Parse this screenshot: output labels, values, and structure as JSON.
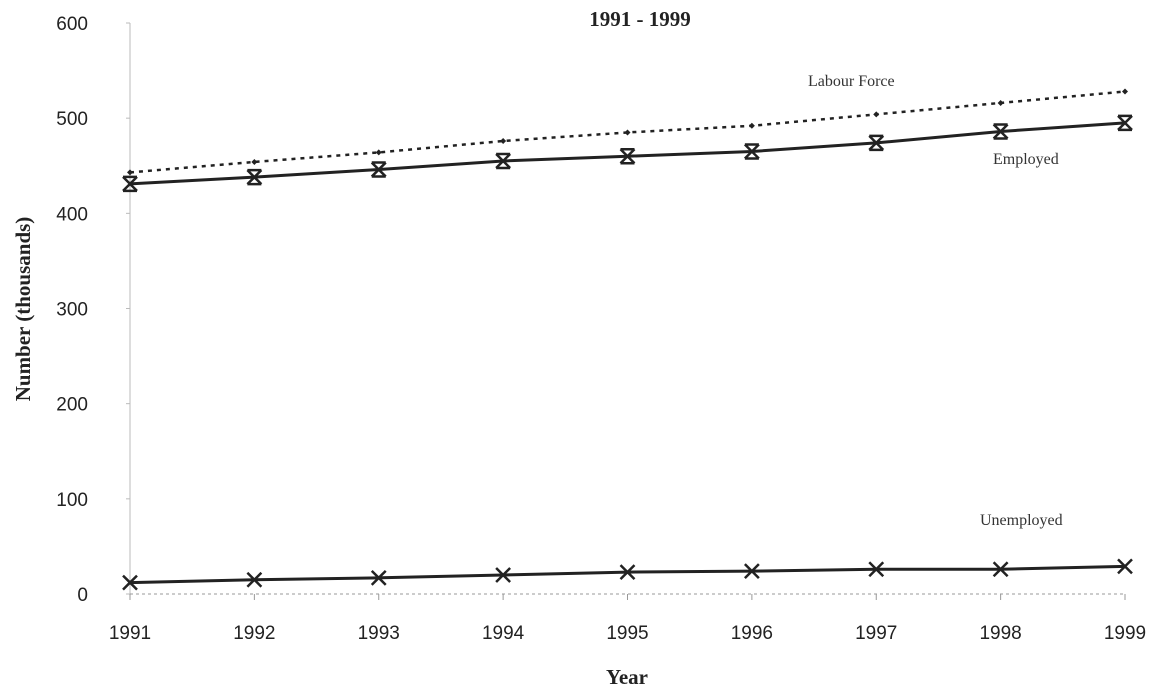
{
  "chart_data": {
    "type": "line",
    "title": "1991 - 1999",
    "x_label": "Year",
    "y_label": "Number (thousands)",
    "x": [
      1991,
      1992,
      1993,
      1994,
      1995,
      1996,
      1997,
      1998,
      1999
    ],
    "xlim": [
      1991,
      1999
    ],
    "xticks": [
      1991,
      1992,
      1993,
      1994,
      1995,
      1996,
      1997,
      1998,
      1999
    ],
    "ylim": [
      0,
      600
    ],
    "yticks": [
      0,
      100,
      200,
      300,
      400,
      500,
      600
    ],
    "grid": false,
    "series": [
      {
        "name": "Labour Force",
        "color": "#222222",
        "values": [
          443,
          454,
          464,
          476,
          485,
          492,
          504,
          516,
          528
        ]
      },
      {
        "name": "Employed",
        "color": "#222222",
        "values": [
          431,
          438,
          446,
          455,
          460,
          465,
          474,
          486,
          495
        ]
      },
      {
        "name": "Unemployed",
        "color": "#222222",
        "values": [
          12,
          15,
          17,
          20,
          23,
          24,
          26,
          26,
          29
        ]
      }
    ]
  }
}
